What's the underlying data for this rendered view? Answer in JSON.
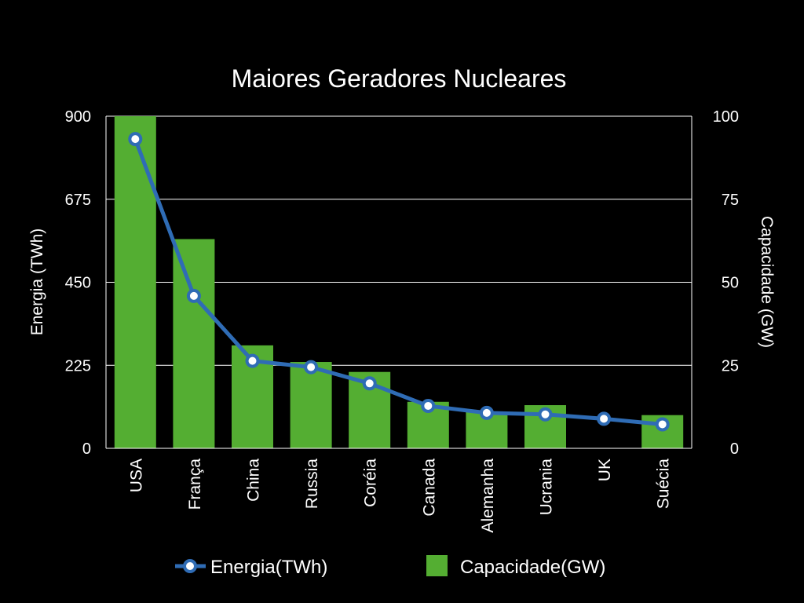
{
  "chart_data": {
    "type": "bar",
    "title": "Maiores Geradores Nucleares",
    "categories": [
      "USA",
      "França",
      "China",
      "Russia",
      "Coréia",
      "Canada",
      "Alemanha",
      "Ucrania",
      "UK",
      "Suécia"
    ],
    "series": [
      {
        "name": "Capacidade(GW)",
        "type": "bar",
        "axis": "right",
        "values": [
          100,
          63,
          31,
          26,
          23,
          14,
          11,
          13,
          0,
          10
        ]
      },
      {
        "name": "Energia(TWh)",
        "type": "line",
        "axis": "left",
        "values": [
          838,
          413,
          237,
          220,
          176,
          115,
          96,
          92,
          80,
          65
        ]
      }
    ],
    "ylabel_left": "Energia (TWh)",
    "ylabel_right": "Capacidade (GW)",
    "ylim_left": [
      0,
      900
    ],
    "ylim_right": [
      0,
      100
    ],
    "yticks_left": [
      "900",
      "675",
      "450",
      "225",
      "0"
    ],
    "yticks_right": [
      "100",
      "75",
      "50",
      "25",
      "0"
    ],
    "grid": true,
    "legend_position": "bottom",
    "colors": {
      "bar": "#54AE32",
      "line": "#2F6CB5",
      "background": "#000000",
      "text": "#ffffff"
    }
  }
}
